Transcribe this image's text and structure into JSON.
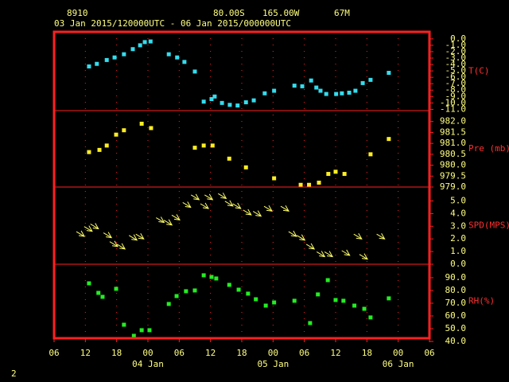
{
  "header": {
    "station": "8910",
    "lat": "80.00S",
    "lon": "165.00W",
    "elev": "67M",
    "period": "03 Jan 2015/120000UTC - 06 Jan 2015/000000UTC"
  },
  "footer": "2",
  "x_axis": {
    "xlim": [
      0,
      72
    ],
    "xticks": [
      {
        "value": 0,
        "label": "06"
      },
      {
        "value": 6,
        "label": "12"
      },
      {
        "value": 12,
        "label": "18"
      },
      {
        "value": 18,
        "label": "00"
      },
      {
        "value": 24,
        "label": "06"
      },
      {
        "value": 30,
        "label": "12"
      },
      {
        "value": 36,
        "label": "18"
      },
      {
        "value": 42,
        "label": "00"
      },
      {
        "value": 48,
        "label": "06"
      },
      {
        "value": 54,
        "label": "12"
      },
      {
        "value": 60,
        "label": "18"
      },
      {
        "value": 66,
        "label": "00"
      },
      {
        "value": 72,
        "label": "06"
      }
    ],
    "date_labels": [
      {
        "value": 18,
        "label": "04 Jan"
      },
      {
        "value": 42,
        "label": "05 Jan"
      },
      {
        "value": 66,
        "label": "06 Jan"
      }
    ]
  },
  "chart_data": [
    {
      "type": "scatter",
      "ylabel": "T(C)",
      "color": "#33ddee",
      "ylim": [
        -11.2,
        1.1
      ],
      "yticks": [
        {
          "value": 0,
          "label": "0.0"
        },
        {
          "value": -1,
          "label": "-1.0"
        },
        {
          "value": -2,
          "label": "-2.0"
        },
        {
          "value": -3,
          "label": "-3.0"
        },
        {
          "value": -4,
          "label": "-4.0"
        },
        {
          "value": -5,
          "label": "-5.0"
        },
        {
          "value": -6,
          "label": "-6.0"
        },
        {
          "value": -7,
          "label": "-7.0"
        },
        {
          "value": -8,
          "label": "-8.0"
        },
        {
          "value": -9,
          "label": "-9.0"
        },
        {
          "value": -10,
          "label": "-10.0"
        },
        {
          "value": -11,
          "label": "-11.0"
        }
      ],
      "x": [
        6.7,
        8.2,
        10.1,
        11.6,
        13.4,
        15.1,
        16.5,
        17.4,
        18.5,
        22.0,
        23.6,
        25.0,
        27.0,
        28.7,
        30.2,
        30.8,
        32.2,
        33.7,
        35.2,
        36.8,
        38.3,
        40.4,
        42.2,
        46.1,
        47.6,
        49.3,
        50.3,
        51.1,
        52.2,
        54.1,
        55.2,
        56.6,
        57.8,
        59.2,
        60.7,
        64.2
      ],
      "values": [
        -4.3,
        -3.9,
        -3.3,
        -2.9,
        -2.4,
        -1.6,
        -1.0,
        -0.5,
        -0.4,
        -2.4,
        -2.9,
        -3.6,
        -5.1,
        -9.8,
        -9.4,
        -9.0,
        -10.0,
        -10.3,
        -10.4,
        -9.9,
        -9.6,
        -8.5,
        -8.1,
        -7.3,
        -7.4,
        -6.5,
        -7.6,
        -8.1,
        -8.6,
        -8.6,
        -8.5,
        -8.4,
        -8.1,
        -6.9,
        -6.4,
        -5.3
      ]
    },
    {
      "type": "scatter",
      "ylabel": "Pre (mb)",
      "color": "#ffee22",
      "ylim": [
        979.0,
        982.5
      ],
      "yticks": [
        {
          "value": 982,
          "label": "982.0"
        },
        {
          "value": 981.5,
          "label": "981.5"
        },
        {
          "value": 981,
          "label": "981.0"
        },
        {
          "value": 980.5,
          "label": "980.5"
        },
        {
          "value": 980,
          "label": "980.0"
        },
        {
          "value": 979.5,
          "label": "979.5"
        },
        {
          "value": 979,
          "label": "979.0"
        }
      ],
      "x": [
        6.7,
        8.7,
        10.1,
        11.9,
        13.4,
        16.8,
        18.6,
        27.0,
        28.7,
        30.4,
        33.6,
        36.8,
        42.2,
        47.3,
        48.9,
        50.8,
        52.6,
        54.0,
        55.7,
        60.7,
        64.2
      ],
      "values": [
        980.6,
        980.7,
        980.9,
        981.4,
        981.6,
        981.9,
        981.7,
        980.8,
        980.9,
        980.9,
        980.3,
        979.9,
        979.4,
        979.1,
        979.1,
        979.2,
        979.6,
        979.7,
        979.6,
        980.5,
        981.2
      ]
    },
    {
      "type": "wind",
      "ylabel": "SPD(MPS)",
      "color": "#ffff66",
      "ylim": [
        0,
        6.1
      ],
      "yticks": [
        {
          "value": 5,
          "label": "5.0"
        },
        {
          "value": 4,
          "label": "4.0"
        },
        {
          "value": 3,
          "label": "3.0"
        },
        {
          "value": 2,
          "label": "2.0"
        },
        {
          "value": 1,
          "label": "1.0"
        },
        {
          "value": 0,
          "label": "0.0"
        }
      ],
      "x": [
        5.8,
        7.3,
        8.5,
        11.0,
        12.2,
        13.6,
        15.9,
        17.2,
        21.1,
        22.6,
        24.1,
        26.2,
        27.8,
        29.6,
        30.4,
        33.0,
        34.3,
        35.8,
        37.8,
        39.7,
        41.8,
        45.0,
        46.5,
        48.1,
        49.9,
        51.9,
        53.4,
        56.7,
        59.0,
        60.1,
        63.4
      ],
      "values": [
        2.2,
        2.6,
        2.8,
        2.1,
        1.4,
        1.2,
        1.9,
        2.0,
        3.3,
        3.1,
        3.5,
        4.5,
        5.1,
        4.4,
        5.1,
        5.2,
        4.6,
        4.4,
        3.9,
        3.8,
        4.2,
        4.2,
        2.2,
        1.9,
        1.2,
        0.6,
        0.6,
        0.7,
        2.0,
        0.4,
        2.0
      ]
    },
    {
      "type": "scatter",
      "ylabel": "RH(%)",
      "color": "#22ee22",
      "ylim": [
        42.5,
        100.6
      ],
      "yticks": [
        {
          "value": 90,
          "label": "90.0"
        },
        {
          "value": 80,
          "label": "80.0"
        },
        {
          "value": 70,
          "label": "70.0"
        },
        {
          "value": 60,
          "label": "60.0"
        },
        {
          "value": 50,
          "label": "50.0"
        },
        {
          "value": 40,
          "label": "40.0"
        }
      ],
      "x": [
        6.7,
        8.5,
        9.3,
        11.9,
        13.4,
        15.3,
        16.8,
        18.3,
        22.0,
        23.5,
        25.3,
        27.0,
        28.7,
        30.2,
        31.1,
        33.6,
        35.4,
        37.2,
        38.7,
        40.6,
        42.2,
        46.1,
        49.1,
        50.6,
        52.5,
        54.0,
        55.5,
        57.6,
        59.5,
        60.7,
        64.2
      ],
      "values": [
        85.6,
        78.1,
        75.0,
        81.3,
        53.1,
        44.4,
        48.8,
        48.8,
        69.4,
        75.6,
        79.4,
        80.0,
        91.9,
        90.6,
        89.4,
        84.4,
        80.6,
        77.5,
        73.1,
        68.1,
        70.6,
        71.9,
        54.4,
        76.9,
        88.1,
        72.5,
        71.9,
        68.1,
        65.6,
        58.8,
        73.8
      ]
    }
  ]
}
